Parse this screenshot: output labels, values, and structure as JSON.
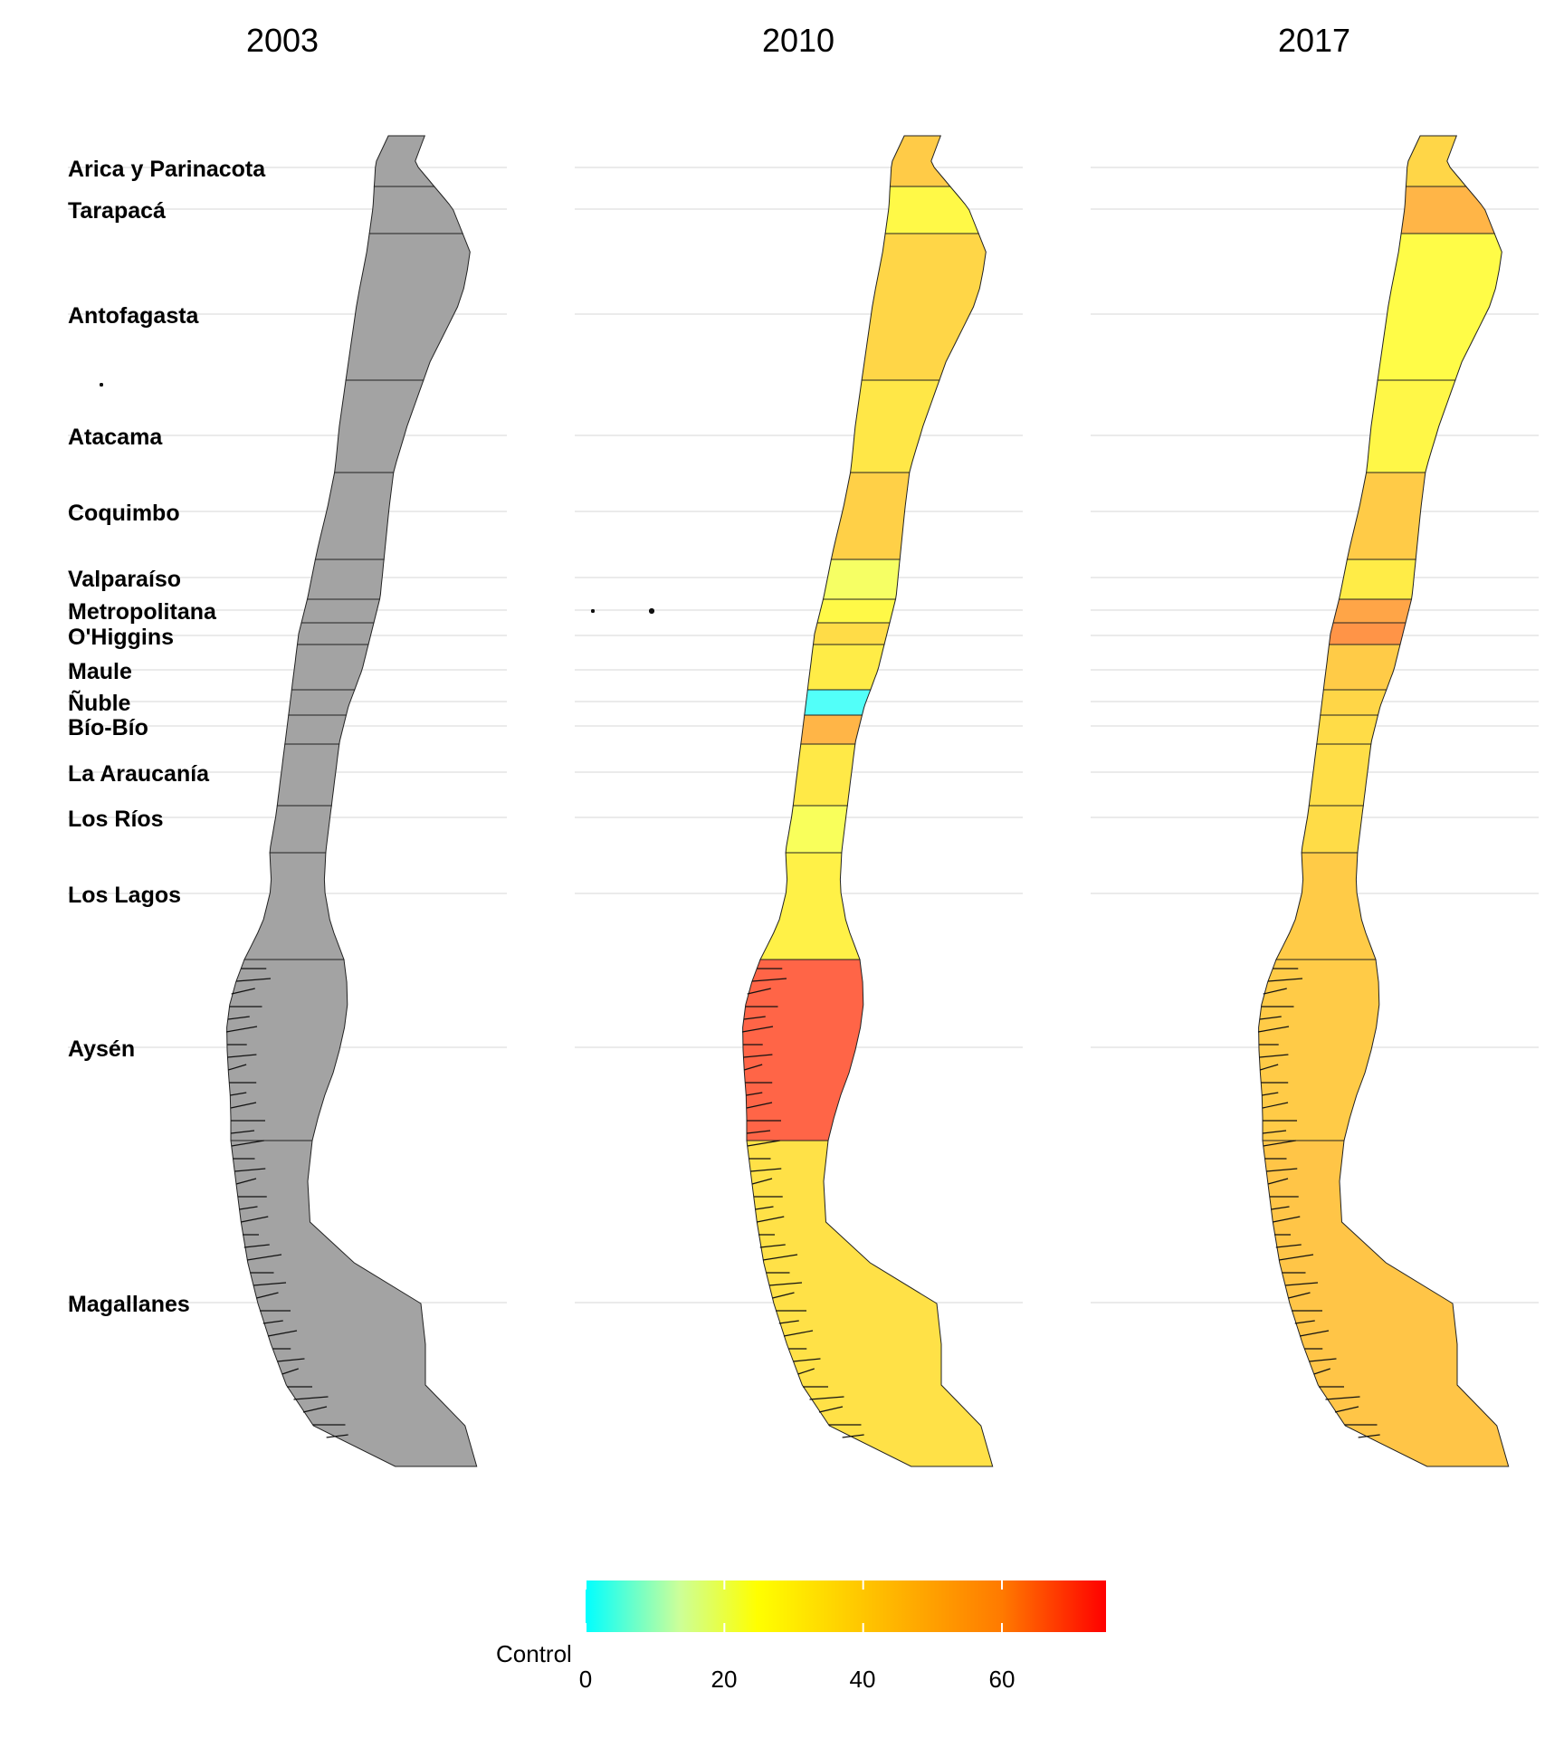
{
  "panels": [
    {
      "year": "2003",
      "has_data": false
    },
    {
      "year": "2010",
      "has_data": true
    },
    {
      "year": "2017",
      "has_data": true
    }
  ],
  "regions": [
    {
      "name": "Arica y Parinacota",
      "v2010": 44,
      "v2017": 40
    },
    {
      "name": "Tarapacá",
      "v2010": 27,
      "v2017": 52
    },
    {
      "name": "Antofagasta",
      "v2010": 40,
      "v2017": 26
    },
    {
      "name": "Atacama",
      "v2010": 34,
      "v2017": 28
    },
    {
      "name": "Coquimbo",
      "v2010": 42,
      "v2017": 44
    },
    {
      "name": "Valparaíso",
      "v2010": 22,
      "v2017": 32
    },
    {
      "name": "Metropolitana",
      "v2010": 27,
      "v2017": 58
    },
    {
      "name": "O'Higgins",
      "v2010": 38,
      "v2017": 62
    },
    {
      "name": "Maule",
      "v2010": 32,
      "v2017": 44
    },
    {
      "name": "Ñuble",
      "v2010": 1,
      "v2017": 40
    },
    {
      "name": "Bío-Bío",
      "v2010": 52,
      "v2017": 38
    },
    {
      "name": "La Araucanía",
      "v2010": 33,
      "v2017": 37
    },
    {
      "name": "Los Ríos",
      "v2010": 23,
      "v2017": 38
    },
    {
      "name": "Los Lagos",
      "v2010": 30,
      "v2017": 44
    },
    {
      "name": "Aysén",
      "v2010": 70,
      "v2017": 44
    },
    {
      "name": "Magallanes",
      "v2010": 36,
      "v2017": 46
    }
  ],
  "legend": {
    "title": "Control",
    "ticks": [
      0,
      20,
      40,
      60
    ],
    "range": [
      0,
      75
    ],
    "colors": [
      "#00ffff",
      "#ffff00",
      "#ff9900",
      "#ff0000"
    ]
  },
  "missing_color": "#a3a3a3",
  "grid_color": "#ebebeb"
}
